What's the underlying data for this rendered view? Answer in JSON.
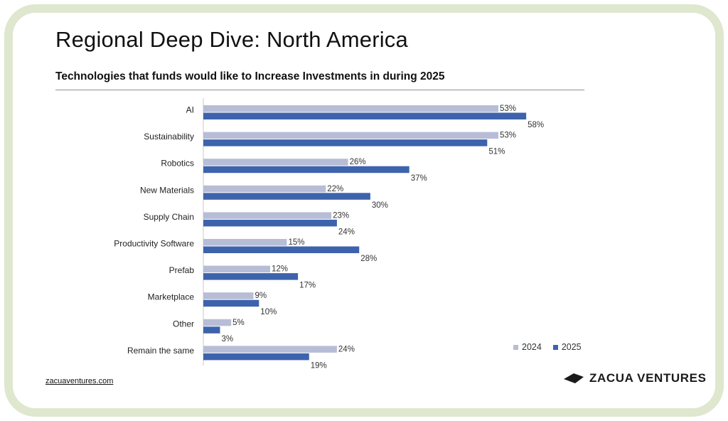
{
  "title": "Regional Deep Dive: North America",
  "subtitle": "Technologies that funds would like to Increase Investments in during 2025",
  "footer": {
    "link": "zacuaventures.com",
    "brand": "ZACUA VENTURES"
  },
  "colors": {
    "s2024": "#b7bdd6",
    "s2025": "#3e63ad",
    "axis": "#c8c8c8"
  },
  "chart_data": {
    "type": "bar",
    "orientation": "horizontal",
    "categories": [
      "AI",
      "Sustainability",
      "Robotics",
      "New Materials",
      "Supply Chain",
      "Productivity Software",
      "Prefab",
      "Marketplace",
      "Other",
      "Remain the same"
    ],
    "series": [
      {
        "name": "2024",
        "values": [
          53,
          53,
          26,
          22,
          23,
          15,
          12,
          9,
          5,
          24
        ],
        "labels": [
          "53%",
          "53%",
          "26%",
          "22%",
          "23%",
          "15%",
          "12%",
          "9%",
          "5%",
          "24%"
        ]
      },
      {
        "name": "2025",
        "values": [
          58,
          51,
          37,
          30,
          24,
          28,
          17,
          10,
          3,
          19
        ],
        "labels": [
          "58%",
          "51%",
          "37%",
          "30%",
          "24%",
          "28%",
          "17%",
          "10%",
          "3%",
          "19%"
        ]
      }
    ],
    "title": "Technologies that funds would like to Increase Investments in during 2025",
    "xlabel": "",
    "ylabel": "",
    "xlim": [
      0,
      60
    ],
    "unit": "%",
    "grid": false,
    "legend": "bottom-right"
  }
}
